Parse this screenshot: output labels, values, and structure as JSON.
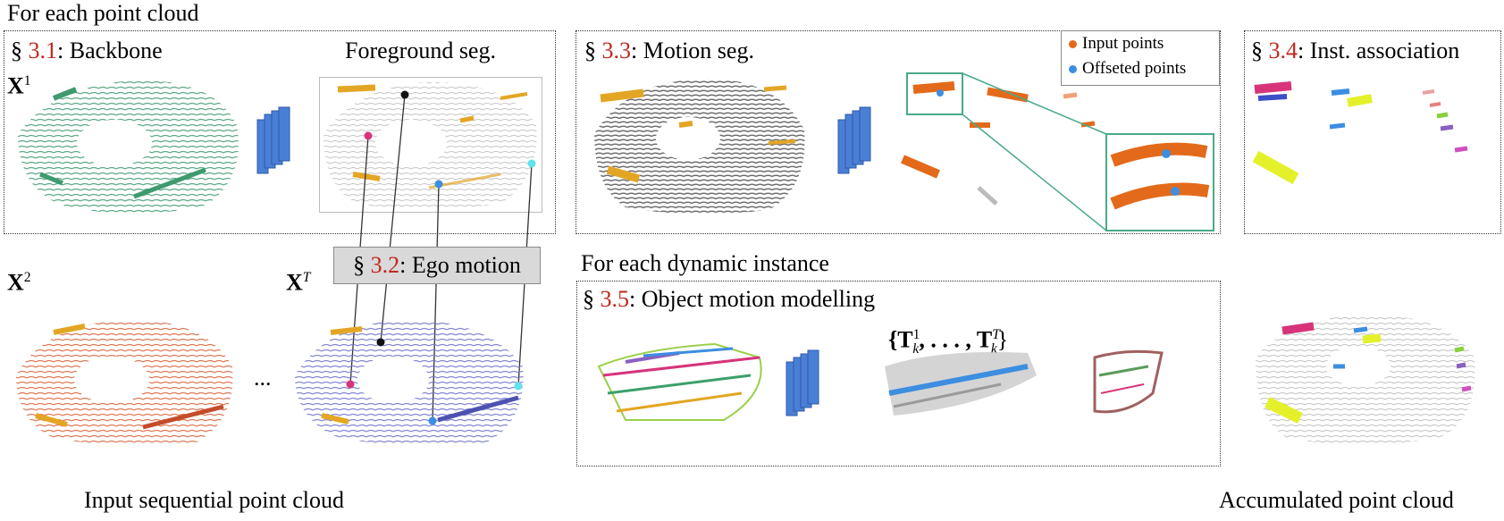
{
  "top_heading": "For each point cloud",
  "dynamic_heading": "For each dynamic instance",
  "panels": {
    "backbone": {
      "section": "3.1",
      "title": ": Backbone"
    },
    "foreground": {
      "title": "Foreground seg."
    },
    "ego": {
      "section": "3.2",
      "title": ": Ego motion"
    },
    "motion": {
      "section": "3.3",
      "title": ": Motion seg."
    },
    "association": {
      "section": "3.4",
      "title": ": Inst. association"
    },
    "object_motion": {
      "section": "3.5",
      "title": ": Object motion modelling"
    }
  },
  "section_symbol": "§",
  "legend": {
    "items": [
      {
        "label": "Input points",
        "color": "#e36a1a"
      },
      {
        "label": "Offseted points",
        "color": "#3c8ee0"
      }
    ]
  },
  "symbols": {
    "x_base": "X",
    "x1_sup": "1",
    "x2_sup": "2",
    "xT_sup": "T",
    "ellipsis": "...",
    "transform_set": "{T",
    "t_sup_1": "1",
    "t_sub_k": "k",
    "t_middle": ", . . . , T",
    "t_sup_T": "T",
    "t_close": "}"
  },
  "captions": {
    "input": "Input sequential point cloud",
    "accumulated": "Accumulated point cloud"
  },
  "colors": {
    "backbone_green": "#3f9a6e",
    "frame2_orange": "#d8613a",
    "frameT_purple": "#6e72c8",
    "foreground_yellow": "#e3a624",
    "network_blue": "#4a7fd6",
    "motion_gray": "#6d6d6d",
    "zoom_teal": "#4aa98b",
    "section_red": "#c0281e"
  }
}
